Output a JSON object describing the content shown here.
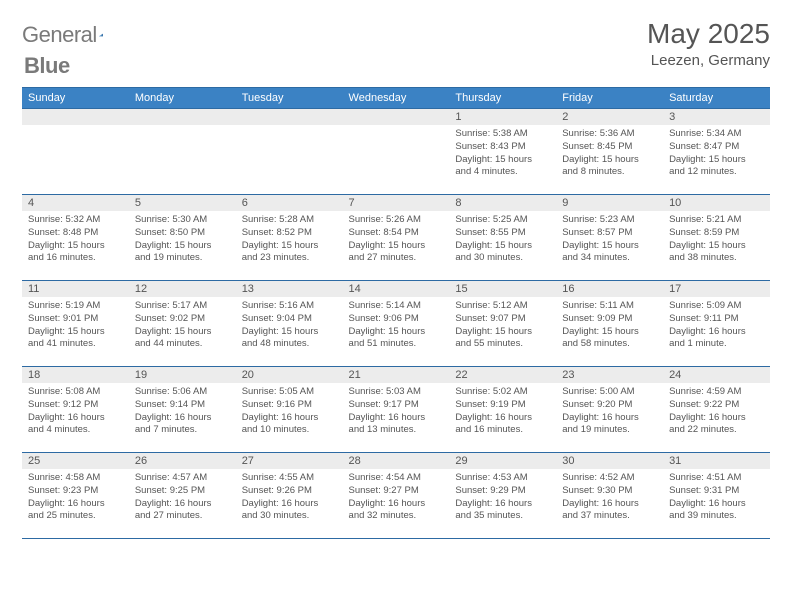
{
  "brand": {
    "word1": "General",
    "word2": "Blue"
  },
  "title": "May 2025",
  "location": "Leezen, Germany",
  "colors": {
    "header_bg": "#3b82c4",
    "header_text": "#ffffff",
    "rule": "#2d6aa3",
    "daynum_bg": "#ececec",
    "text": "#555555",
    "logo_accent": "#2d6aa3"
  },
  "daynames": [
    "Sunday",
    "Monday",
    "Tuesday",
    "Wednesday",
    "Thursday",
    "Friday",
    "Saturday"
  ],
  "weeks": [
    [
      null,
      null,
      null,
      null,
      {
        "n": "1",
        "sr": "5:38 AM",
        "ss": "8:43 PM",
        "dl": "15 hours and 4 minutes."
      },
      {
        "n": "2",
        "sr": "5:36 AM",
        "ss": "8:45 PM",
        "dl": "15 hours and 8 minutes."
      },
      {
        "n": "3",
        "sr": "5:34 AM",
        "ss": "8:47 PM",
        "dl": "15 hours and 12 minutes."
      }
    ],
    [
      {
        "n": "4",
        "sr": "5:32 AM",
        "ss": "8:48 PM",
        "dl": "15 hours and 16 minutes."
      },
      {
        "n": "5",
        "sr": "5:30 AM",
        "ss": "8:50 PM",
        "dl": "15 hours and 19 minutes."
      },
      {
        "n": "6",
        "sr": "5:28 AM",
        "ss": "8:52 PM",
        "dl": "15 hours and 23 minutes."
      },
      {
        "n": "7",
        "sr": "5:26 AM",
        "ss": "8:54 PM",
        "dl": "15 hours and 27 minutes."
      },
      {
        "n": "8",
        "sr": "5:25 AM",
        "ss": "8:55 PM",
        "dl": "15 hours and 30 minutes."
      },
      {
        "n": "9",
        "sr": "5:23 AM",
        "ss": "8:57 PM",
        "dl": "15 hours and 34 minutes."
      },
      {
        "n": "10",
        "sr": "5:21 AM",
        "ss": "8:59 PM",
        "dl": "15 hours and 38 minutes."
      }
    ],
    [
      {
        "n": "11",
        "sr": "5:19 AM",
        "ss": "9:01 PM",
        "dl": "15 hours and 41 minutes."
      },
      {
        "n": "12",
        "sr": "5:17 AM",
        "ss": "9:02 PM",
        "dl": "15 hours and 44 minutes."
      },
      {
        "n": "13",
        "sr": "5:16 AM",
        "ss": "9:04 PM",
        "dl": "15 hours and 48 minutes."
      },
      {
        "n": "14",
        "sr": "5:14 AM",
        "ss": "9:06 PM",
        "dl": "15 hours and 51 minutes."
      },
      {
        "n": "15",
        "sr": "5:12 AM",
        "ss": "9:07 PM",
        "dl": "15 hours and 55 minutes."
      },
      {
        "n": "16",
        "sr": "5:11 AM",
        "ss": "9:09 PM",
        "dl": "15 hours and 58 minutes."
      },
      {
        "n": "17",
        "sr": "5:09 AM",
        "ss": "9:11 PM",
        "dl": "16 hours and 1 minute."
      }
    ],
    [
      {
        "n": "18",
        "sr": "5:08 AM",
        "ss": "9:12 PM",
        "dl": "16 hours and 4 minutes."
      },
      {
        "n": "19",
        "sr": "5:06 AM",
        "ss": "9:14 PM",
        "dl": "16 hours and 7 minutes."
      },
      {
        "n": "20",
        "sr": "5:05 AM",
        "ss": "9:16 PM",
        "dl": "16 hours and 10 minutes."
      },
      {
        "n": "21",
        "sr": "5:03 AM",
        "ss": "9:17 PM",
        "dl": "16 hours and 13 minutes."
      },
      {
        "n": "22",
        "sr": "5:02 AM",
        "ss": "9:19 PM",
        "dl": "16 hours and 16 minutes."
      },
      {
        "n": "23",
        "sr": "5:00 AM",
        "ss": "9:20 PM",
        "dl": "16 hours and 19 minutes."
      },
      {
        "n": "24",
        "sr": "4:59 AM",
        "ss": "9:22 PM",
        "dl": "16 hours and 22 minutes."
      }
    ],
    [
      {
        "n": "25",
        "sr": "4:58 AM",
        "ss": "9:23 PM",
        "dl": "16 hours and 25 minutes."
      },
      {
        "n": "26",
        "sr": "4:57 AM",
        "ss": "9:25 PM",
        "dl": "16 hours and 27 minutes."
      },
      {
        "n": "27",
        "sr": "4:55 AM",
        "ss": "9:26 PM",
        "dl": "16 hours and 30 minutes."
      },
      {
        "n": "28",
        "sr": "4:54 AM",
        "ss": "9:27 PM",
        "dl": "16 hours and 32 minutes."
      },
      {
        "n": "29",
        "sr": "4:53 AM",
        "ss": "9:29 PM",
        "dl": "16 hours and 35 minutes."
      },
      {
        "n": "30",
        "sr": "4:52 AM",
        "ss": "9:30 PM",
        "dl": "16 hours and 37 minutes."
      },
      {
        "n": "31",
        "sr": "4:51 AM",
        "ss": "9:31 PM",
        "dl": "16 hours and 39 minutes."
      }
    ]
  ],
  "labels": {
    "sunrise": "Sunrise:",
    "sunset": "Sunset:",
    "daylight": "Daylight:"
  }
}
